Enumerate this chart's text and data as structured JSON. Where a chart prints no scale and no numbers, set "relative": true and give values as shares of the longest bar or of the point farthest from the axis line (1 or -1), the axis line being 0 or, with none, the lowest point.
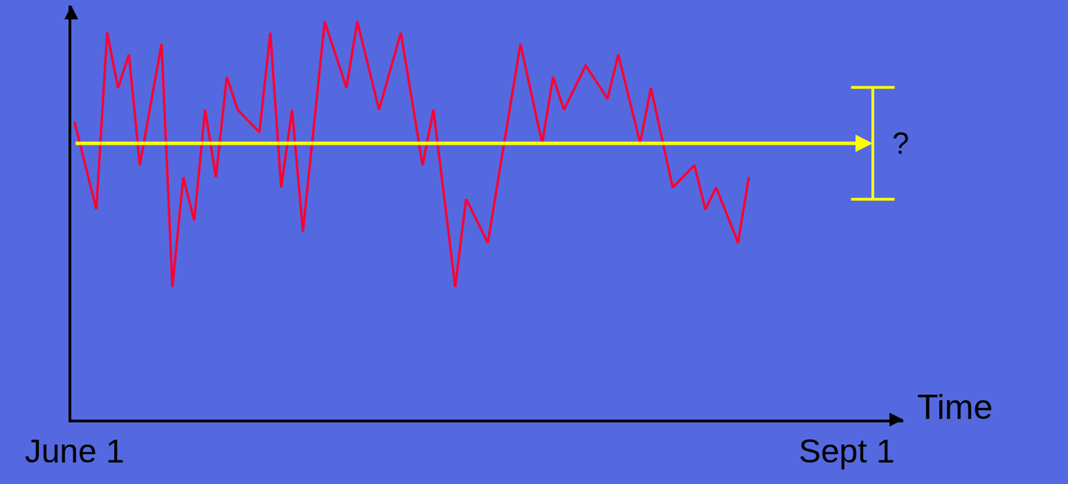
{
  "chart_data": {
    "type": "line",
    "relative": true,
    "xlabel": "Time",
    "categories": [
      "June 1",
      null,
      null,
      null,
      null,
      null,
      null,
      null,
      null,
      null,
      null,
      null,
      null,
      null,
      null,
      null,
      null,
      null,
      null,
      null,
      null,
      null,
      null,
      null,
      null,
      null,
      null,
      null,
      null,
      null,
      null,
      null,
      null,
      null,
      null,
      null,
      null,
      null,
      null,
      null,
      null,
      null,
      null,
      null,
      null,
      null,
      null,
      null,
      null,
      null,
      null,
      null,
      null,
      null,
      null,
      null,
      null,
      null,
      null,
      null,
      null,
      null,
      null,
      null,
      null,
      null,
      null,
      null,
      null,
      null,
      null,
      "Sept 1"
    ],
    "marker": "none",
    "line_style": "solid",
    "series": [
      {
        "color": "#ff0033",
        "values": [
          0.748,
          0.638,
          0.528,
          0.972,
          0.833,
          0.917,
          0.639,
          0.792,
          0.944,
          0.333,
          0.609,
          0.5,
          0.778,
          0.609,
          0.861,
          0.778,
          0.75,
          0.722,
          0.972,
          0.583,
          0.778,
          0.472,
          0.736,
          1.0,
          0.917,
          0.833,
          1.0,
          0.889,
          0.778,
          0.875,
          0.972,
          0.806,
          0.639,
          0.778,
          0.556,
          0.333,
          0.554,
          0.499,
          0.444,
          0.611,
          0.778,
          0.944,
          0.819,
          0.694,
          0.861,
          0.778,
          0.834,
          0.889,
          0.848,
          0.806,
          0.917,
          0.806,
          0.694,
          0.833,
          0.708,
          0.583,
          0.611,
          0.639,
          0.528,
          0.583,
          0.514,
          0.444,
          0.609,
          null,
          null,
          null,
          null,
          null,
          null,
          null,
          null,
          null
        ]
      }
    ],
    "ref_lines": [
      {
        "axis": "y",
        "value": 0.694,
        "color": "#ffff00"
      }
    ],
    "annotations": [
      "?"
    ]
  }
}
